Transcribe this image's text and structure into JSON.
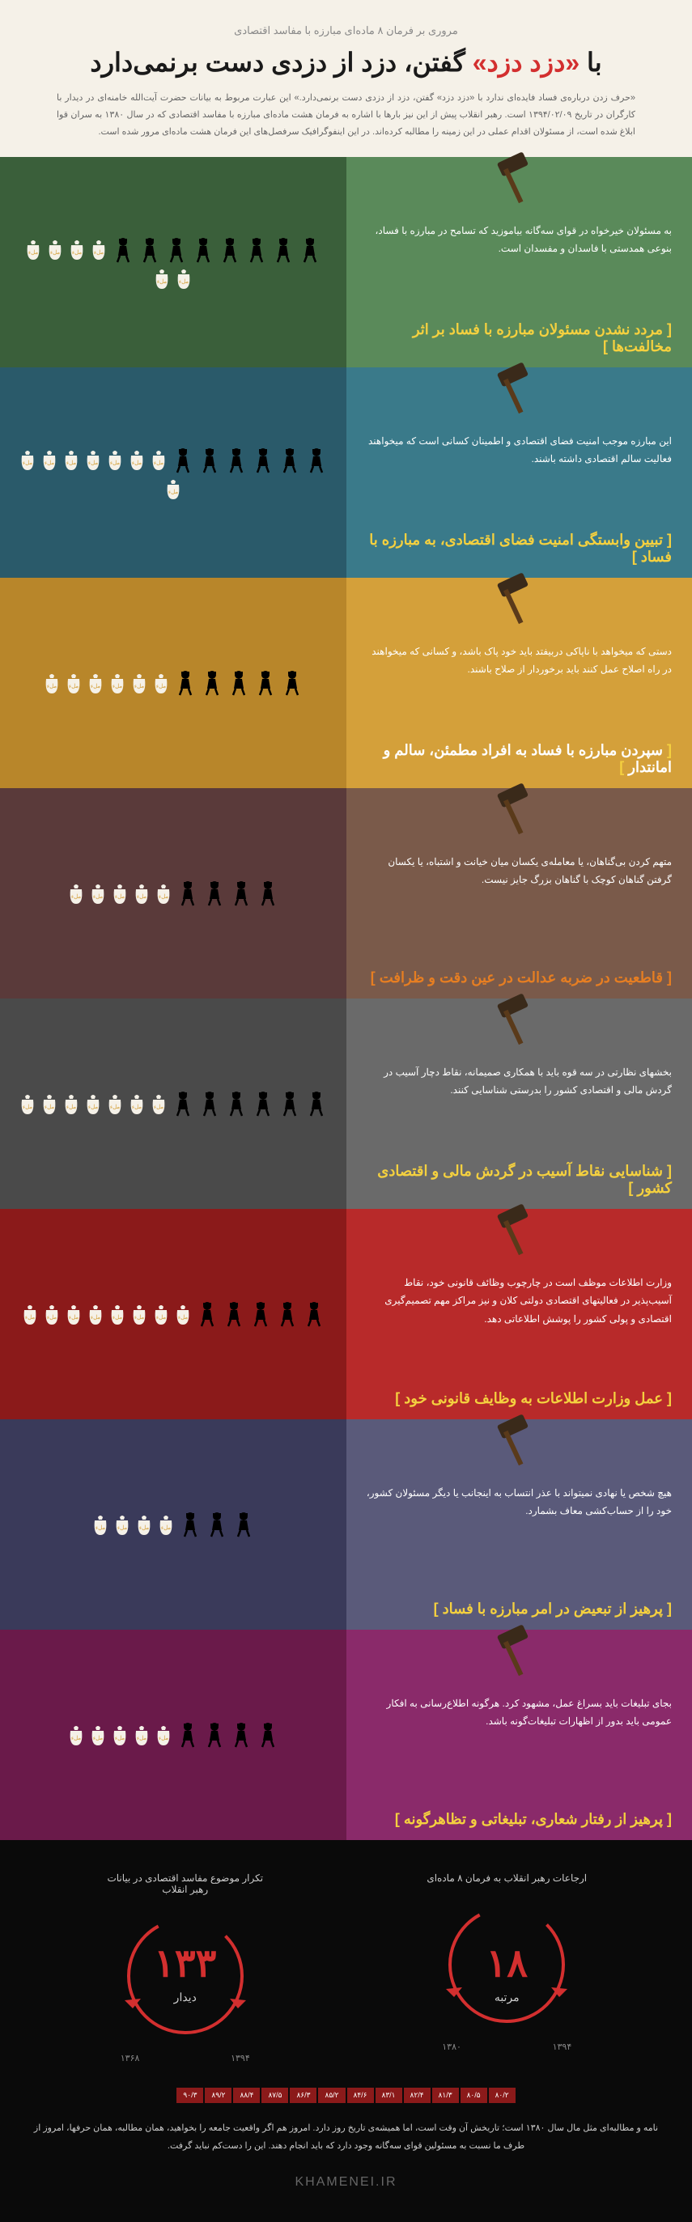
{
  "header": {
    "subtitle": "مروری بر فرمان ۸ ماده‌ای مبارزه با مفاسد اقتصادی",
    "title_pre": "با ",
    "title_red": "«دزد دزد»",
    "title_post": " گفتن، دزد از دزدی دست برنمی‌دارد",
    "intro": "«حرف زدن درباره‌ی فساد فایده‌ای ندارد با «دزد دزد» گفتن، دزد از دزدی دست برنمی‌دارد.» این عبارت مربوط به بیانات حضرت آیت‌الله خامنه‌ای در دیدار با کارگران در تاریخ ۱۳۹۴/۰۲/۰۹ است. رهبر انقلاب پیش از این نیز بارها با اشاره به فرمان هشت ماده‌ای مبارزه با مفاسد اقتصادی که در سال ۱۳۸۰ به سران قوا ابلاغ شده است، از مسئولان اقدام عملی در این زمینه را مطالبه کرده‌اند. در این اینفوگرافیک سرفصل‌های این فرمان هشت ماده‌ای مرور شده است."
  },
  "sections": [
    {
      "bg_left": "#3a5f3a",
      "bg_right": "#5a8a5a",
      "text": "به مسئولان خیرخواه در قوای سه‌گانه بیاموزید که تسامح در مبارزه با فساد، بنوعی همدستی با فاسدان و مفسدان است.",
      "heading": "مردد نشدن مسئولان مبارزه با فساد بر اثر مخالفت‌ها",
      "heading_color": "#f4d03f",
      "bracket_color": "#f4d03f",
      "thieves": 8,
      "bags": 6
    },
    {
      "bg_left": "#2a5a6a",
      "bg_right": "#3a7a8a",
      "text": "این مبارزه موجب امنیت فضای اقتصادی و اطمینان کسانی است که میخواهند فعالیت سالم اقتصادی داشته باشند.",
      "heading": "تبیین وابستگی امنیت فضای اقتصادی، به مبارزه با فساد",
      "heading_color": "#f4d03f",
      "bracket_color": "#f4d03f",
      "thieves": 6,
      "bags": 8
    },
    {
      "bg_left": "#b8862a",
      "bg_right": "#d4a03a",
      "text": "دستی که میخواهد با ناپاکی دربیفتد باید خود پاک باشد، و کسانی که میخواهند در راه اصلاح عمل کنند باید برخوردار از صلاح باشند.",
      "heading": "سپردن مبارزه با فساد به افراد مطمئن، سالم و امانتدار",
      "heading_color": "#ffffff",
      "bracket_color": "#f4d03f",
      "thieves": 5,
      "bags": 6
    },
    {
      "bg_left": "#5a3a3a",
      "bg_right": "#7a5a4a",
      "text": "متهم کردن بی‌گناهان، یا معامله‌ی یکسان میان خیانت و اشتباه، یا یکسان گرفتن گناهان کوچک با گناهان بزرگ جایز نیست.",
      "heading": "قاطعیت در ضربه عدالت در عین دقت و ظرافت",
      "heading_color": "#e67e22",
      "bracket_color": "#e67e22",
      "thieves": 4,
      "bags": 5
    },
    {
      "bg_left": "#4a4a4a",
      "bg_right": "#6a6a6a",
      "text": "بخشهای نظارتی در سه قوه باید با همکاری صمیمانه، نقاط دچار آسیب در گردش مالی و اقتصادی کشور را بدرستی شناسایی کنند.",
      "heading": "شناسایی نقاط آسیب در گردش مالی و اقتصادی کشور",
      "heading_color": "#f4d03f",
      "bracket_color": "#f4d03f",
      "thieves": 6,
      "bags": 7
    },
    {
      "bg_left": "#8b1a1a",
      "bg_right": "#b82a2a",
      "text": "وزارت اطلاعات موظف است در چارچوب وظائف قانونی خود، نقاط آسیب‌پذیر در فعالیتهای اقتصادی دولتی کلان و نیز مراکز مهم تصمیم‌گیری اقتصادی و پولی کشور را پوشش اطلاعاتی دهد.",
      "heading": "عمل وزارت اطلاعات به وظایف قانونی خود",
      "heading_color": "#f4d03f",
      "bracket_color": "#f4d03f",
      "thieves": 5,
      "bags": 8
    },
    {
      "bg_left": "#3a3a5a",
      "bg_right": "#5a5a7a",
      "text": "هیچ شخص یا نهادی نمیتواند با عذر انتساب به اینجانب یا دیگر مسئولان کشور، خود را از حساب‌کشی معاف بشمارد.",
      "heading": "پرهیز از تبعیض در امر مبارزه با فساد",
      "heading_color": "#f4d03f",
      "bracket_color": "#f4d03f",
      "thieves": 3,
      "bags": 4
    },
    {
      "bg_left": "#6a1a4a",
      "bg_right": "#8a2a6a",
      "text": "بجای تبلیغات باید بسراغ عمل، مشهود کرد. هرگونه اطلاع‌رسانی به افکار عمومی باید بدور از اظهارات تبلیغات‌گونه باشد.",
      "heading": "پرهیز از رفتار شعاری، تبلیغاتی و تظاهرگونه",
      "heading_color": "#f4d03f",
      "bracket_color": "#f4d03f",
      "thieves": 4,
      "bags": 5
    }
  ],
  "footer": {
    "stat1_label": "ارجاعات رهبر انقلاب به فرمان ۸ ماده‌ای",
    "stat1_value": "۱۸",
    "stat1_unit": "مرتبه",
    "stat1_color": "#d32f2f",
    "stat1_year_start": "۱۳۸۰",
    "stat1_year_end": "۱۳۹۴",
    "stat2_label": "تکرار موضوع مفاسد اقتصادی در بیانات رهبر انقلاب",
    "stat2_value": "۱۳۳",
    "stat2_unit": "دیدار",
    "stat2_color": "#d32f2f",
    "stat2_year_start": "۱۳۶۸",
    "stat2_year_end": "۱۳۹۴",
    "timeline": [
      "۸۰/۲",
      "۸۰/۵",
      "۸۱/۳",
      "۸۲/۴",
      "۸۳/۱",
      "۸۴/۶",
      "۸۵/۲",
      "۸۶/۳",
      "۸۷/۵",
      "۸۸/۴",
      "۸۹/۲",
      "۹۰/۳"
    ],
    "text": "نامه و مطالبه‌ای مثل مال سال ۱۳۸۰ است؛ تاریخش آن وقت است، اما همیشه‌ی تاریخ روز دارد. امروز هم اگر واقعیت جامعه را بخواهید، همان مطالبه، همان حرفها، امروز از طرف ما نسبت به مسئولین قوای سه‌گانه وجود دارد که باید انجام دهند. این را دست‌کم نباید گرفت.",
    "logo": "KHAMENEI.IR"
  }
}
